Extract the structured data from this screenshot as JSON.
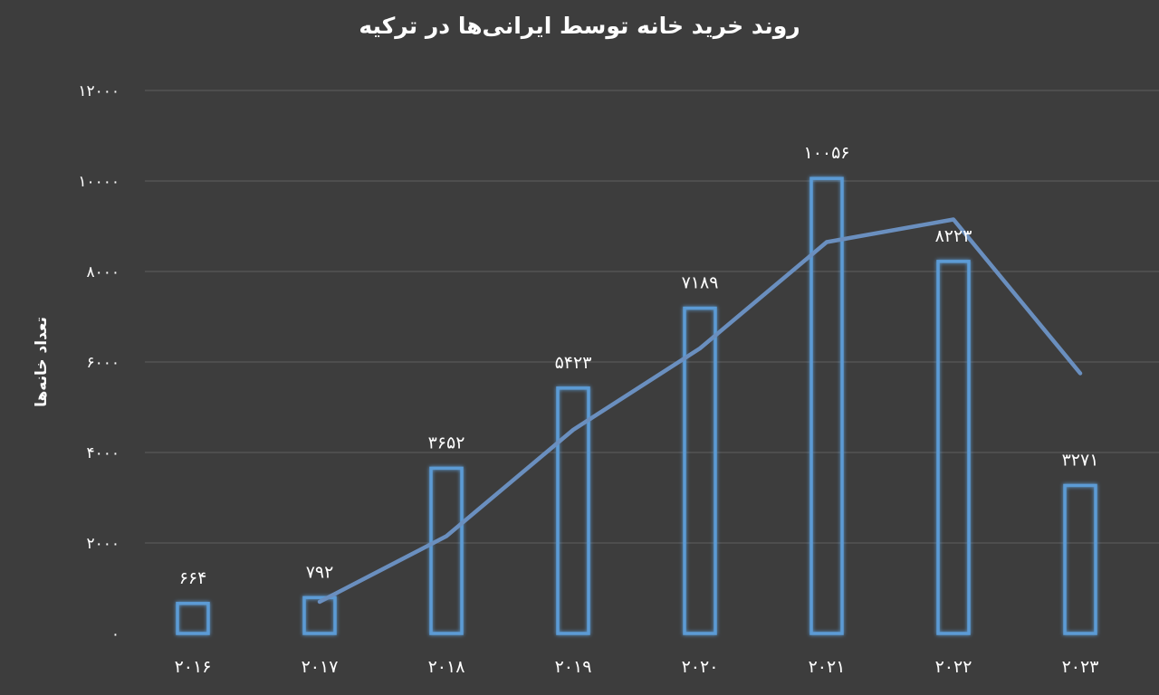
{
  "chart_data": {
    "type": "bar",
    "title": "روند خرید خانه توسط ایرانی‌ها در ترکیه",
    "xlabel": "",
    "ylabel": "تعداد خانه‌ها",
    "categories": [
      "۲۰۱۶",
      "۲۰۱۷",
      "۲۰۱۸",
      "۲۰۱۹",
      "۲۰۲۰",
      "۲۰۲۱",
      "۲۰۲۲",
      "۲۰۲۳"
    ],
    "values": [
      664,
      792,
      3652,
      5423,
      7189,
      10056,
      8223,
      3271
    ],
    "value_labels": [
      "۶۶۴",
      "۷۹۲",
      "۳۶۵۲",
      "۵۴۲۳",
      "۷۱۸۹",
      "۱۰۰۵۶",
      "۸۲۲۳",
      "۳۲۷۱"
    ],
    "trend_line": [
      null,
      700,
      2150,
      4500,
      6300,
      8650,
      9150,
      5750
    ],
    "ylim": [
      0,
      12000
    ],
    "yticks": [
      0,
      2000,
      4000,
      6000,
      8000,
      10000,
      12000
    ],
    "ytick_labels": [
      "۰",
      "۲۰۰۰",
      "۴۰۰۰",
      "۶۰۰۰",
      "۸۰۰۰",
      "۱۰۰۰۰",
      "۱۲۰۰۰"
    ],
    "grid": true,
    "legend": "none",
    "colors": {
      "background": "#3d3d3d",
      "bar_outline": "#5b9bd5",
      "trend_line": "#6a8fbf",
      "grid": "#5a5a5a",
      "text": "#ffffff"
    }
  }
}
